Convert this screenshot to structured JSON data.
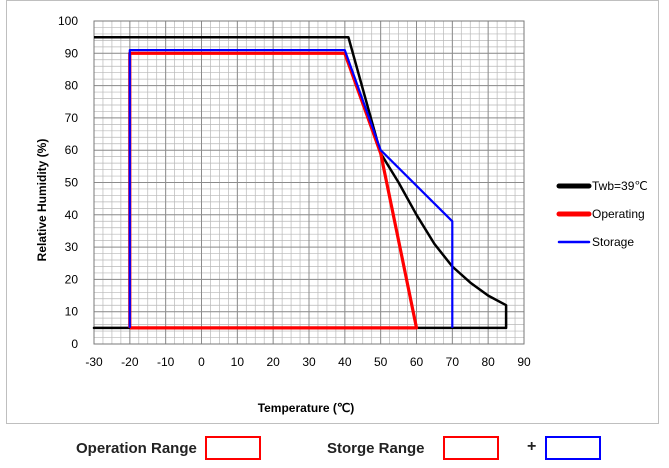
{
  "chart_data": {
    "type": "line",
    "xlabel": "Temperature (℃)",
    "ylabel": "Relative Humidity (%)",
    "xlim": [
      -30,
      90
    ],
    "ylim": [
      0,
      100
    ],
    "xticks": [
      "-30",
      "-20",
      "-10",
      "0",
      "10",
      "20",
      "30",
      "40",
      "50",
      "60",
      "70",
      "80",
      "90"
    ],
    "yticks": [
      "0",
      "10",
      "20",
      "30",
      "40",
      "50",
      "60",
      "70",
      "80",
      "90",
      "100"
    ],
    "grid": true,
    "legend_position": "right",
    "series": [
      {
        "name": "Twb=39℃",
        "color": "#000000",
        "points": [
          [
            -20,
            5
          ],
          [
            -30,
            5
          ],
          [
            85,
            5
          ],
          [
            85,
            12
          ],
          [
            80,
            15
          ],
          [
            75,
            19
          ],
          [
            70,
            24
          ],
          [
            65,
            31
          ],
          [
            60,
            40
          ],
          [
            55,
            50
          ],
          [
            50,
            59
          ],
          [
            41,
            95
          ],
          [
            -30,
            95
          ]
        ]
      },
      {
        "name": "Operating",
        "color": "#ff0000",
        "points": [
          [
            -20,
            5
          ],
          [
            -20,
            90
          ],
          [
            40,
            90
          ],
          [
            50,
            59
          ],
          [
            60,
            5
          ],
          [
            -20,
            5
          ]
        ]
      },
      {
        "name": "Storage",
        "color": "#0000ff",
        "points": [
          [
            -20,
            5
          ],
          [
            -20,
            91
          ],
          [
            40,
            91
          ],
          [
            50,
            60
          ],
          [
            70,
            38
          ],
          [
            70,
            5
          ]
        ]
      }
    ]
  },
  "bottom_legend": {
    "operation_label": "Operation Range",
    "storage_label": "Storge Range",
    "plus": "+",
    "operation_color": "#ff0000",
    "storage_colors": [
      "#ff0000",
      "#0000ff"
    ]
  }
}
